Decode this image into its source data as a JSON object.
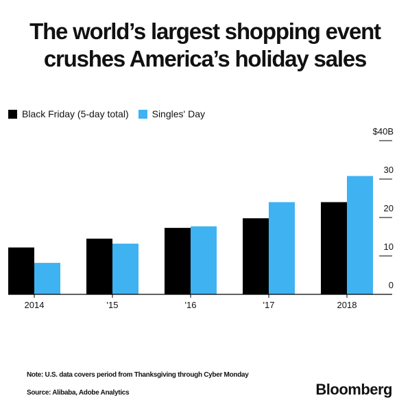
{
  "title_line1": "The world’s largest shopping event",
  "title_line2": "crushes America’s holiday sales",
  "legend": [
    {
      "label": "Black Friday (5-day total)",
      "color": "#000000"
    },
    {
      "label": "Singles' Day",
      "color": "#3fb2f2"
    }
  ],
  "note": "Note: U.S. data covers period from Thanksgiving through Cyber Monday",
  "source": "Source: Alibaba, Adobe Analytics",
  "brand": "Bloomberg",
  "chart_data": {
    "type": "bar",
    "categories": [
      "2014",
      "'15",
      "'16",
      "'17",
      "2018"
    ],
    "series": [
      {
        "name": "Black Friday (5-day total)",
        "color": "#000000",
        "values": [
          12.2,
          14.5,
          17.3,
          19.8,
          24.0
        ]
      },
      {
        "name": "Singles' Day",
        "color": "#3fb2f2",
        "values": [
          8.2,
          13.2,
          17.7,
          24.0,
          30.8
        ]
      }
    ],
    "yticks": [
      0,
      10,
      20,
      30,
      40
    ],
    "ytick_labels": [
      "0",
      "10",
      "20",
      "30",
      "$40B"
    ],
    "ylim": [
      0,
      40
    ],
    "y_axis_position": "right",
    "grid": false
  }
}
